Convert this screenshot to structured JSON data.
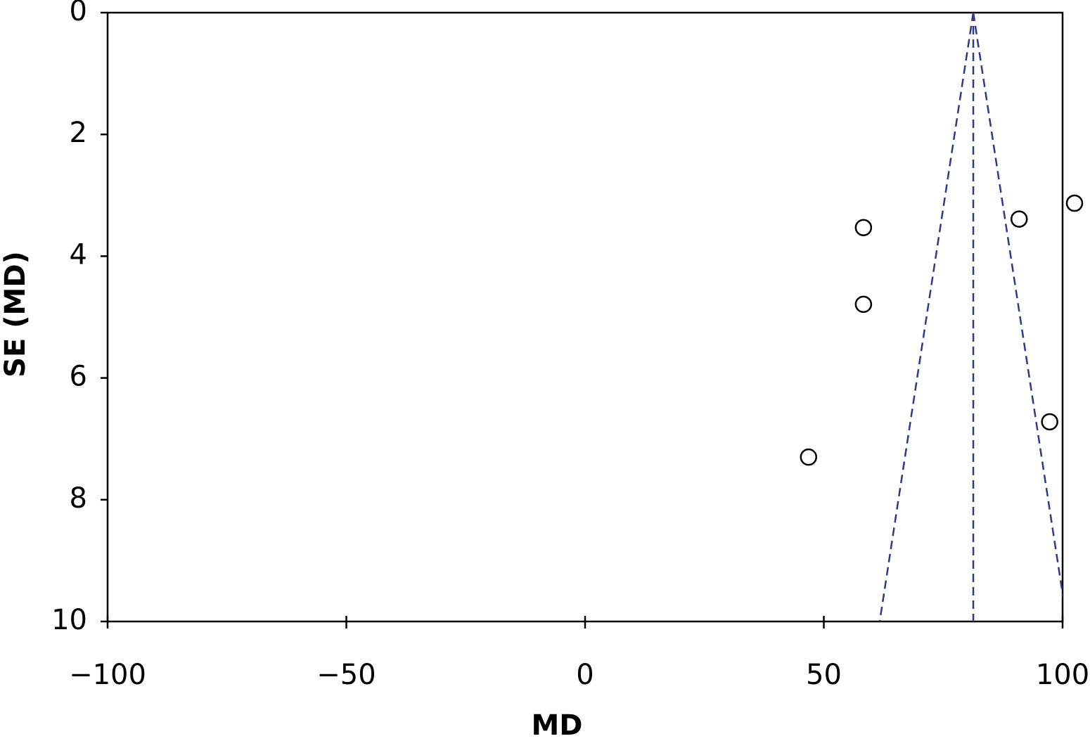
{
  "chart_data": {
    "type": "scatter",
    "x_label": "MD",
    "y_label": "SE (MD)",
    "x": [
      102.5,
      90.9,
      58.3,
      58.3,
      97.3,
      46.8
    ],
    "values": [
      3.13,
      3.39,
      3.53,
      4.79,
      6.72,
      7.3
    ],
    "marker_color": "#000000",
    "xlim": [
      -100,
      100
    ],
    "xticks": [
      {
        "value": -100,
        "label": "−100"
      },
      {
        "value": -50,
        "label": "−50"
      },
      0,
      50,
      100
    ],
    "ylim": [
      0,
      10
    ],
    "y_inverted": true,
    "yticks": [
      0,
      2,
      4,
      6,
      8,
      10
    ],
    "lines": [
      {
        "x": [
          81.3,
          61.7
        ],
        "y": [
          0,
          10
        ],
        "color": "#2e3a8c",
        "dashed": true
      },
      {
        "x": [
          81.3,
          100.9
        ],
        "y": [
          0,
          10
        ],
        "color": "#2e3a8c",
        "dashed": true
      },
      {
        "x": [
          81.3,
          81.3
        ],
        "y": [
          0,
          10
        ],
        "color": "#2e3a8c",
        "dashed": true
      }
    ]
  }
}
